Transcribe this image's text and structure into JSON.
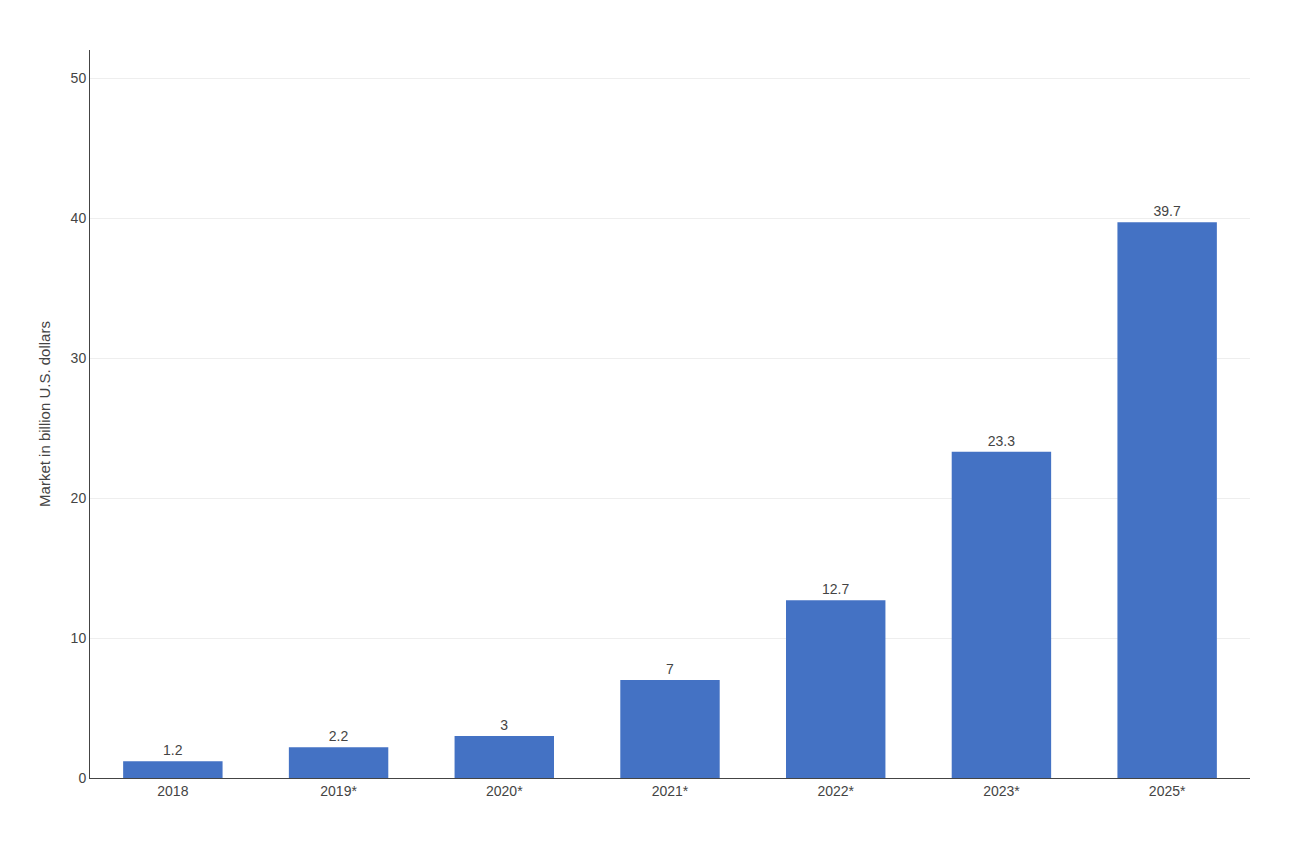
{
  "chart_data": {
    "type": "bar",
    "categories": [
      "2018",
      "2019*",
      "2020*",
      "2021*",
      "2022*",
      "2023*",
      "2025*"
    ],
    "values": [
      1.2,
      2.2,
      3,
      7,
      12.7,
      23.3,
      39.7
    ],
    "color": "#4472c4",
    "ylabel": "Market in billion U.S. dollars",
    "ylim": [
      0,
      52
    ],
    "yticks": [
      0,
      10,
      20,
      30,
      40,
      50
    ],
    "grid": true,
    "data_labels": true
  }
}
